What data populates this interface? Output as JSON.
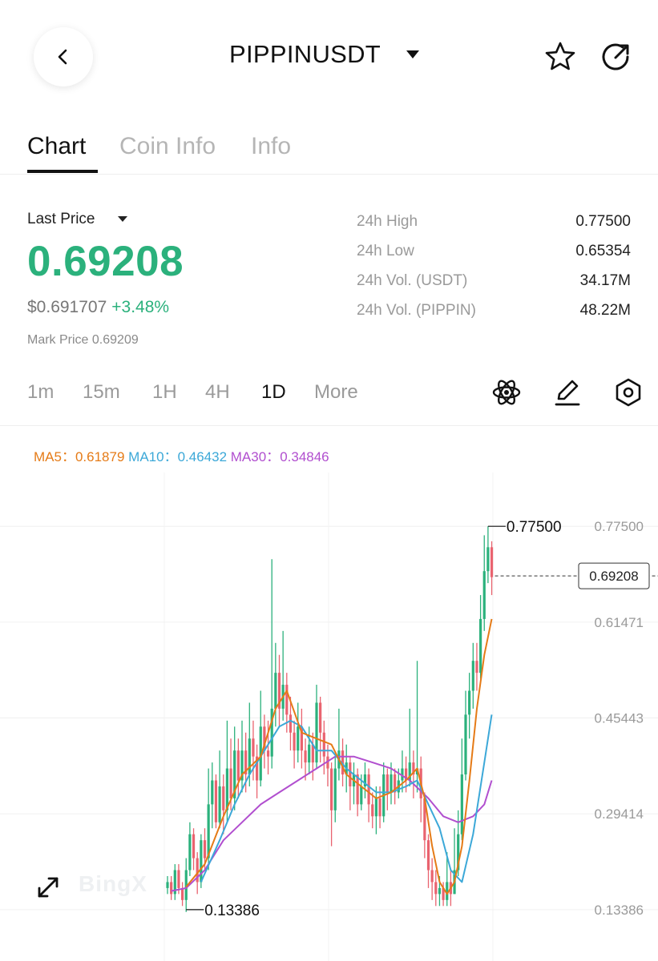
{
  "header": {
    "back_icon": "chevron-left-icon",
    "symbol": "PIPPINUSDT",
    "favorite_icon": "star-icon",
    "share_icon": "share-icon"
  },
  "tabs": [
    {
      "label": "Chart",
      "active": true
    },
    {
      "label": "Coin Info",
      "active": false
    },
    {
      "label": "Info",
      "active": false
    }
  ],
  "price": {
    "last_label": "Last Price",
    "last_price": "0.69208",
    "usd_price": "$0.691707",
    "change": "+3.48%",
    "mark_price": "Mark Price 0.69209"
  },
  "stats": [
    {
      "label": "24h High",
      "value": "0.77500"
    },
    {
      "label": "24h Low",
      "value": "0.65354"
    },
    {
      "label": "24h Vol. (USDT)",
      "value": "34.17M"
    },
    {
      "label": "24h Vol. (PIPPIN)",
      "value": "48.22M"
    }
  ],
  "intervals": [
    {
      "label": "1m",
      "active": false
    },
    {
      "label": "15m",
      "active": false
    },
    {
      "label": "1H",
      "active": false
    },
    {
      "label": "4H",
      "active": false
    },
    {
      "label": "1D",
      "active": true
    },
    {
      "label": "More",
      "active": false
    }
  ],
  "tools": {
    "indicator_icon": "atom-icon",
    "draw_icon": "pencil-icon",
    "settings_icon": "hexagon-settings-icon"
  },
  "ma": {
    "ma5_label": "MA5：",
    "ma5_value": "0.61879",
    "ma10_label": "MA10：",
    "ma10_value": "0.46432",
    "ma30_label": "MA30：",
    "ma30_value": "0.34846"
  },
  "colors": {
    "up": "#2bb17c",
    "down": "#e9636f",
    "ma5": "#e57b17",
    "ma10": "#3ca8d8",
    "ma30": "#b14fcf"
  },
  "watermark": "BingX",
  "chart_data": {
    "type": "candlestick",
    "y_axis_ticks": [
      "0.77500",
      "0.61471",
      "0.45443",
      "0.29414",
      "0.13386"
    ],
    "y_tick_values": [
      0.775,
      0.61471,
      0.45443,
      0.29414,
      0.13386
    ],
    "ylim": [
      0.048,
      0.865
    ],
    "high_marker": "0.77500",
    "low_marker": "0.13386",
    "current_price_tag": "0.69208",
    "current_price": 0.69208,
    "grid": true,
    "candles": [
      [
        0.17,
        0.18,
        0.19,
        0.16
      ],
      [
        0.18,
        0.16,
        0.19,
        0.15
      ],
      [
        0.16,
        0.2,
        0.21,
        0.15
      ],
      [
        0.2,
        0.17,
        0.21,
        0.16
      ],
      [
        0.17,
        0.15,
        0.18,
        0.14
      ],
      [
        0.15,
        0.2,
        0.22,
        0.13
      ],
      [
        0.2,
        0.26,
        0.28,
        0.19
      ],
      [
        0.26,
        0.22,
        0.27,
        0.2
      ],
      [
        0.22,
        0.18,
        0.23,
        0.16
      ],
      [
        0.18,
        0.25,
        0.26,
        0.17
      ],
      [
        0.25,
        0.22,
        0.27,
        0.2
      ],
      [
        0.22,
        0.31,
        0.37,
        0.2
      ],
      [
        0.31,
        0.35,
        0.38,
        0.27
      ],
      [
        0.35,
        0.28,
        0.36,
        0.27
      ],
      [
        0.28,
        0.34,
        0.4,
        0.27
      ],
      [
        0.34,
        0.3,
        0.36,
        0.26
      ],
      [
        0.3,
        0.37,
        0.45,
        0.28
      ],
      [
        0.37,
        0.32,
        0.42,
        0.3
      ],
      [
        0.32,
        0.4,
        0.44,
        0.3
      ],
      [
        0.4,
        0.35,
        0.42,
        0.32
      ],
      [
        0.35,
        0.4,
        0.45,
        0.33
      ],
      [
        0.4,
        0.36,
        0.43,
        0.33
      ],
      [
        0.36,
        0.42,
        0.48,
        0.34
      ],
      [
        0.42,
        0.39,
        0.45,
        0.35
      ],
      [
        0.39,
        0.35,
        0.41,
        0.32
      ],
      [
        0.35,
        0.44,
        0.5,
        0.34
      ],
      [
        0.44,
        0.4,
        0.46,
        0.37
      ],
      [
        0.4,
        0.39,
        0.45,
        0.36
      ],
      [
        0.39,
        0.47,
        0.72,
        0.37
      ],
      [
        0.47,
        0.53,
        0.58,
        0.44
      ],
      [
        0.53,
        0.47,
        0.56,
        0.44
      ],
      [
        0.47,
        0.51,
        0.6,
        0.45
      ],
      [
        0.51,
        0.46,
        0.53,
        0.43
      ],
      [
        0.46,
        0.43,
        0.49,
        0.4
      ],
      [
        0.43,
        0.4,
        0.45,
        0.37
      ],
      [
        0.4,
        0.44,
        0.48,
        0.38
      ],
      [
        0.44,
        0.4,
        0.47,
        0.37
      ],
      [
        0.4,
        0.38,
        0.42,
        0.35
      ],
      [
        0.38,
        0.41,
        0.44,
        0.36
      ],
      [
        0.41,
        0.38,
        0.43,
        0.35
      ],
      [
        0.38,
        0.48,
        0.51,
        0.37
      ],
      [
        0.48,
        0.43,
        0.49,
        0.38
      ],
      [
        0.43,
        0.39,
        0.45,
        0.36
      ],
      [
        0.39,
        0.37,
        0.41,
        0.34
      ],
      [
        0.37,
        0.3,
        0.38,
        0.24
      ],
      [
        0.3,
        0.37,
        0.39,
        0.28
      ],
      [
        0.37,
        0.4,
        0.47,
        0.35
      ],
      [
        0.4,
        0.36,
        0.42,
        0.34
      ],
      [
        0.36,
        0.38,
        0.41,
        0.33
      ],
      [
        0.38,
        0.34,
        0.39,
        0.3
      ],
      [
        0.34,
        0.36,
        0.38,
        0.31
      ],
      [
        0.36,
        0.31,
        0.37,
        0.29
      ],
      [
        0.31,
        0.34,
        0.36,
        0.3
      ],
      [
        0.34,
        0.36,
        0.38,
        0.32
      ],
      [
        0.36,
        0.31,
        0.37,
        0.28
      ],
      [
        0.31,
        0.29,
        0.33,
        0.27
      ],
      [
        0.29,
        0.32,
        0.34,
        0.26
      ],
      [
        0.32,
        0.29,
        0.34,
        0.27
      ],
      [
        0.29,
        0.36,
        0.38,
        0.28
      ],
      [
        0.36,
        0.33,
        0.37,
        0.3
      ],
      [
        0.33,
        0.36,
        0.38,
        0.31
      ],
      [
        0.36,
        0.33,
        0.37,
        0.31
      ],
      [
        0.33,
        0.35,
        0.37,
        0.32
      ],
      [
        0.35,
        0.37,
        0.4,
        0.33
      ],
      [
        0.37,
        0.35,
        0.39,
        0.33
      ],
      [
        0.35,
        0.38,
        0.47,
        0.34
      ],
      [
        0.38,
        0.36,
        0.4,
        0.32
      ],
      [
        0.36,
        0.37,
        0.55,
        0.33
      ],
      [
        0.37,
        0.32,
        0.39,
        0.28
      ],
      [
        0.32,
        0.25,
        0.33,
        0.22
      ],
      [
        0.25,
        0.2,
        0.26,
        0.17
      ],
      [
        0.2,
        0.18,
        0.22,
        0.15
      ],
      [
        0.18,
        0.16,
        0.2,
        0.14
      ],
      [
        0.16,
        0.17,
        0.19,
        0.14
      ],
      [
        0.17,
        0.15,
        0.18,
        0.14
      ],
      [
        0.15,
        0.18,
        0.23,
        0.14
      ],
      [
        0.18,
        0.16,
        0.2,
        0.14
      ],
      [
        0.16,
        0.2,
        0.27,
        0.16
      ],
      [
        0.2,
        0.26,
        0.3,
        0.19
      ],
      [
        0.26,
        0.36,
        0.42,
        0.25
      ],
      [
        0.36,
        0.46,
        0.5,
        0.35
      ],
      [
        0.46,
        0.5,
        0.53,
        0.42
      ],
      [
        0.5,
        0.55,
        0.58,
        0.47
      ],
      [
        0.55,
        0.53,
        0.58,
        0.5
      ],
      [
        0.53,
        0.62,
        0.66,
        0.52
      ],
      [
        0.62,
        0.7,
        0.76,
        0.6
      ],
      [
        0.7,
        0.74,
        0.775,
        0.68
      ],
      [
        0.74,
        0.69,
        0.75,
        0.66
      ]
    ],
    "ma5": [
      [
        5,
        0.172
      ],
      [
        10,
        0.21
      ],
      [
        15,
        0.29
      ],
      [
        20,
        0.36
      ],
      [
        25,
        0.39
      ],
      [
        29,
        0.47
      ],
      [
        32,
        0.5
      ],
      [
        36,
        0.43
      ],
      [
        40,
        0.42
      ],
      [
        44,
        0.41
      ],
      [
        48,
        0.36
      ],
      [
        52,
        0.34
      ],
      [
        56,
        0.32
      ],
      [
        60,
        0.33
      ],
      [
        64,
        0.35
      ],
      [
        67,
        0.37
      ],
      [
        69,
        0.32
      ],
      [
        71,
        0.24
      ],
      [
        73,
        0.18
      ],
      [
        75,
        0.16
      ],
      [
        77,
        0.18
      ],
      [
        79,
        0.24
      ],
      [
        81,
        0.35
      ],
      [
        83,
        0.47
      ],
      [
        85,
        0.56
      ],
      [
        87,
        0.62
      ]
    ],
    "ma10": [
      [
        9,
        0.18
      ],
      [
        14,
        0.25
      ],
      [
        18,
        0.31
      ],
      [
        22,
        0.36
      ],
      [
        26,
        0.4
      ],
      [
        30,
        0.44
      ],
      [
        33,
        0.45
      ],
      [
        36,
        0.44
      ],
      [
        40,
        0.4
      ],
      [
        44,
        0.4
      ],
      [
        48,
        0.37
      ],
      [
        52,
        0.35
      ],
      [
        56,
        0.33
      ],
      [
        60,
        0.33
      ],
      [
        64,
        0.34
      ],
      [
        67,
        0.35
      ],
      [
        70,
        0.31
      ],
      [
        73,
        0.27
      ],
      [
        76,
        0.2
      ],
      [
        79,
        0.18
      ],
      [
        82,
        0.26
      ],
      [
        85,
        0.38
      ],
      [
        87,
        0.46
      ]
    ],
    "ma30": [
      [
        1,
        0.165
      ],
      [
        5,
        0.17
      ],
      [
        10,
        0.2
      ],
      [
        15,
        0.25
      ],
      [
        20,
        0.28
      ],
      [
        25,
        0.31
      ],
      [
        30,
        0.33
      ],
      [
        35,
        0.35
      ],
      [
        40,
        0.37
      ],
      [
        45,
        0.39
      ],
      [
        50,
        0.39
      ],
      [
        55,
        0.38
      ],
      [
        60,
        0.37
      ],
      [
        65,
        0.35
      ],
      [
        70,
        0.32
      ],
      [
        74,
        0.29
      ],
      [
        78,
        0.28
      ],
      [
        82,
        0.29
      ],
      [
        85,
        0.31
      ],
      [
        87,
        0.35
      ]
    ]
  }
}
